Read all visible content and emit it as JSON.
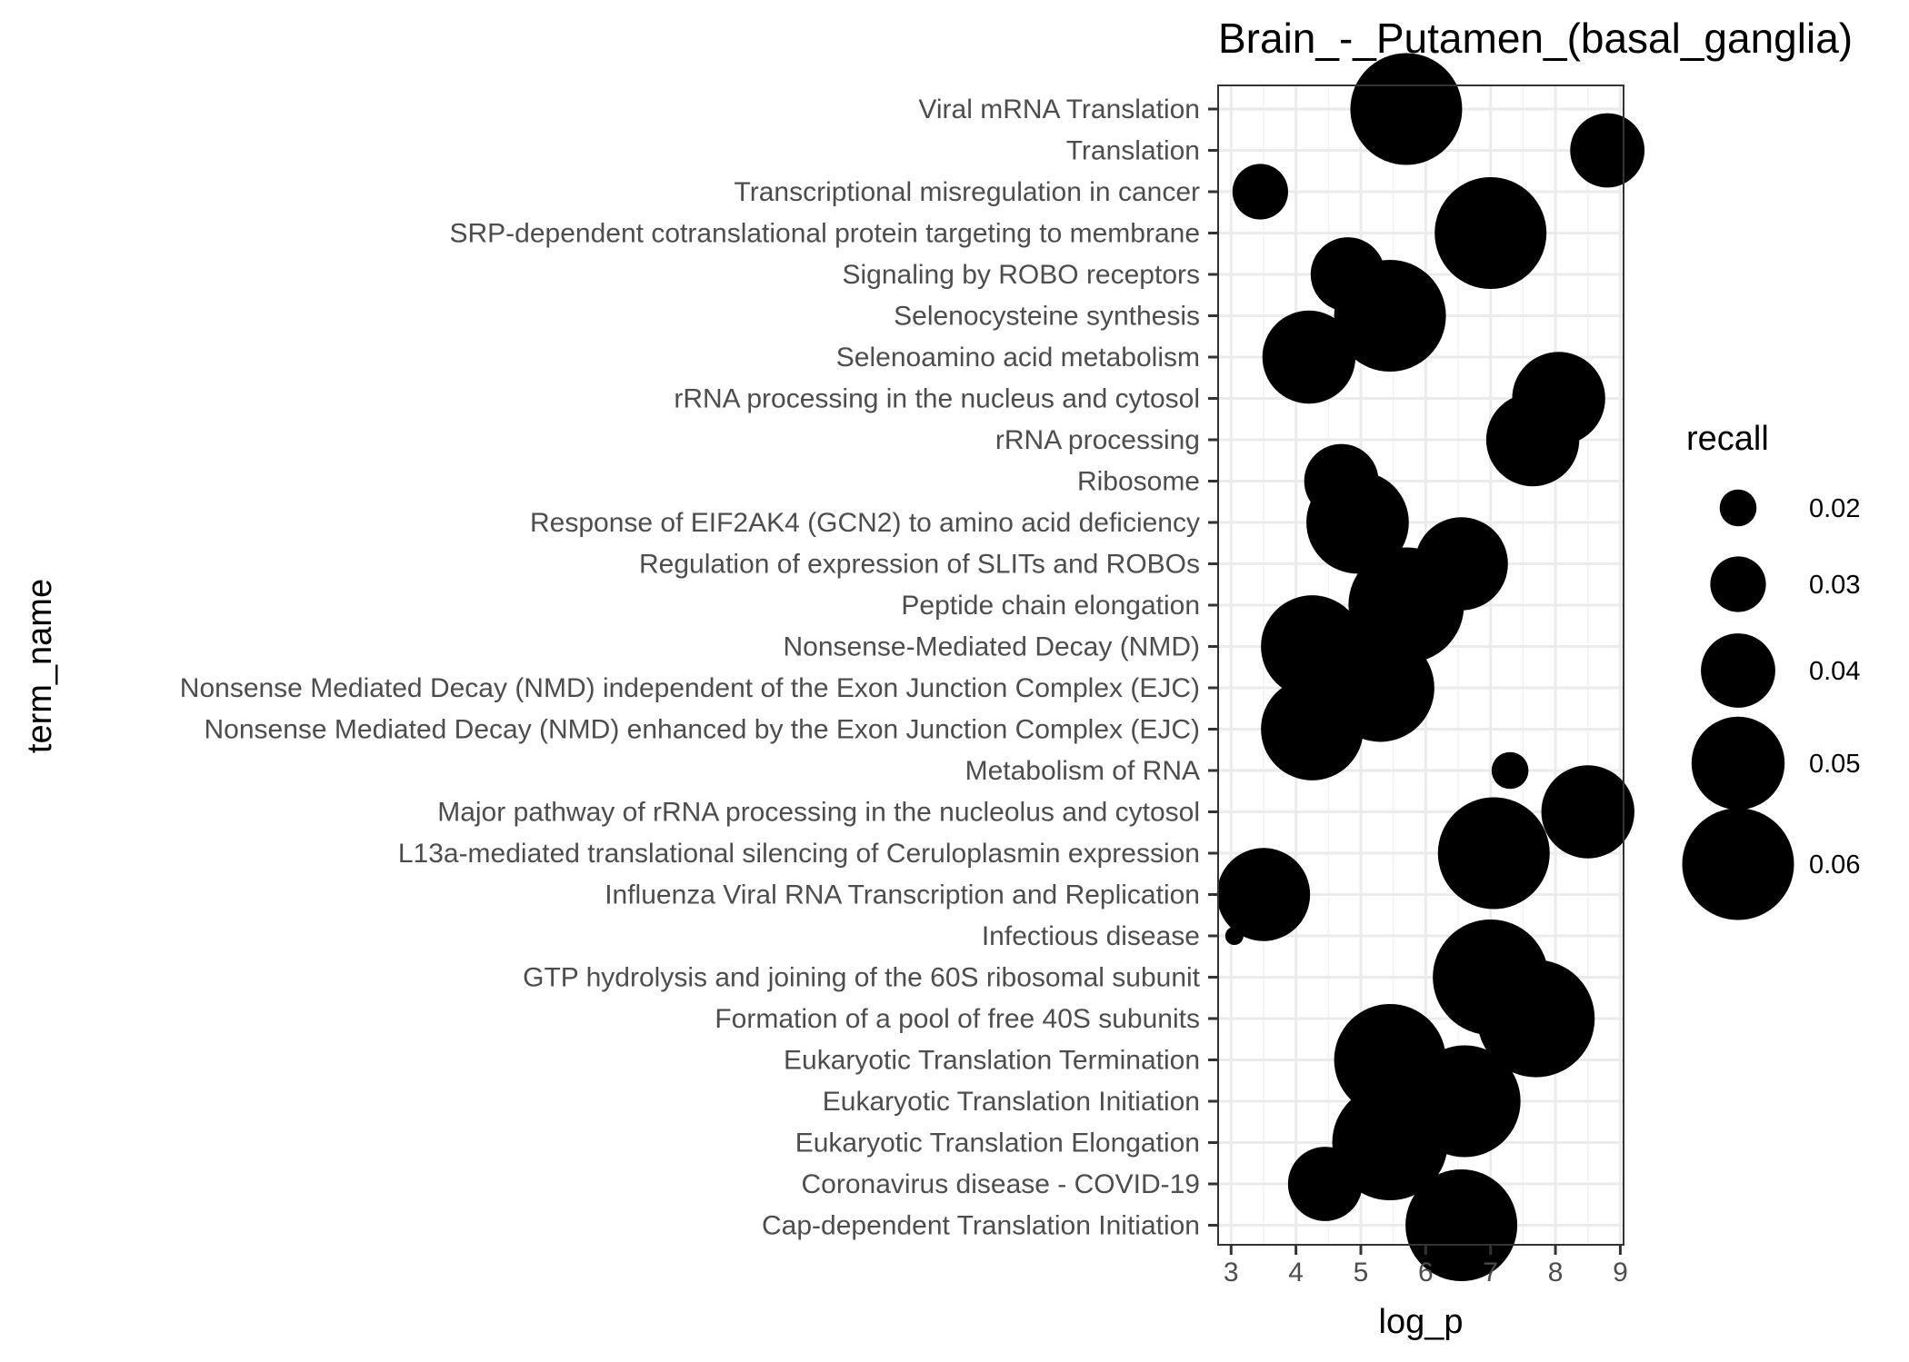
{
  "chart_data": {
    "type": "scatter",
    "title": "Brain_-_Putamen_(basal_ganglia)",
    "xlabel": "log_p",
    "ylabel": "term_name",
    "xlim": [
      2.8,
      9.05
    ],
    "x_ticks": [
      3,
      4,
      5,
      6,
      7,
      8,
      9
    ],
    "grid": true,
    "legend": {
      "title": "recall",
      "position": "right",
      "entries": [
        {
          "label": "0.02",
          "value": 0.02
        },
        {
          "label": "0.03",
          "value": 0.03
        },
        {
          "label": "0.04",
          "value": 0.04
        },
        {
          "label": "0.05",
          "value": 0.05
        },
        {
          "label": "0.06",
          "value": 0.06
        }
      ]
    },
    "points": [
      {
        "term": "Viral mRNA Translation",
        "log_p": 5.7,
        "recall": 0.06
      },
      {
        "term": "Translation",
        "log_p": 8.8,
        "recall": 0.04
      },
      {
        "term": "Transcriptional misregulation in cancer",
        "log_p": 3.45,
        "recall": 0.03
      },
      {
        "term": "SRP-dependent cotranslational protein targeting to membrane",
        "log_p": 7.0,
        "recall": 0.06
      },
      {
        "term": "Signaling by ROBO receptors",
        "log_p": 4.8,
        "recall": 0.04
      },
      {
        "term": "Selenocysteine synthesis",
        "log_p": 5.45,
        "recall": 0.06
      },
      {
        "term": "Selenoamino acid metabolism",
        "log_p": 4.2,
        "recall": 0.05
      },
      {
        "term": "rRNA processing in the nucleus and cytosol",
        "log_p": 8.05,
        "recall": 0.05
      },
      {
        "term": "rRNA processing",
        "log_p": 7.65,
        "recall": 0.05
      },
      {
        "term": "Ribosome",
        "log_p": 4.7,
        "recall": 0.04
      },
      {
        "term": "Response of EIF2AK4 (GCN2) to amino acid deficiency",
        "log_p": 4.95,
        "recall": 0.055
      },
      {
        "term": "Regulation of expression of SLITs and ROBOs",
        "log_p": 6.55,
        "recall": 0.05
      },
      {
        "term": "Peptide chain elongation",
        "log_p": 5.7,
        "recall": 0.062
      },
      {
        "term": "Nonsense-Mediated Decay (NMD)",
        "log_p": 4.25,
        "recall": 0.055
      },
      {
        "term": "Nonsense Mediated Decay (NMD) independent of the Exon Junction Complex (EJC)",
        "log_p": 5.3,
        "recall": 0.058
      },
      {
        "term": "Nonsense Mediated Decay (NMD) enhanced by the Exon Junction Complex (EJC)",
        "log_p": 4.25,
        "recall": 0.055
      },
      {
        "term": "Metabolism of RNA",
        "log_p": 7.3,
        "recall": 0.02
      },
      {
        "term": "Major pathway of rRNA processing in the nucleolus and cytosol",
        "log_p": 8.5,
        "recall": 0.05
      },
      {
        "term": "L13a-mediated translational silencing of Ceruloplasmin expression",
        "log_p": 7.05,
        "recall": 0.06
      },
      {
        "term": "Influenza Viral RNA Transcription and Replication",
        "log_p": 3.5,
        "recall": 0.05
      },
      {
        "term": "Infectious disease",
        "log_p": 3.05,
        "recall": 0.01
      },
      {
        "term": "GTP hydrolysis and joining of the 60S ribosomal subunit",
        "log_p": 7.0,
        "recall": 0.062
      },
      {
        "term": "Formation of a pool of free 40S subunits",
        "log_p": 7.7,
        "recall": 0.063
      },
      {
        "term": "Eukaryotic Translation Termination",
        "log_p": 5.45,
        "recall": 0.06
      },
      {
        "term": "Eukaryotic Translation Initiation",
        "log_p": 6.6,
        "recall": 0.06
      },
      {
        "term": "Eukaryotic Translation Elongation",
        "log_p": 5.45,
        "recall": 0.062
      },
      {
        "term": "Coronavirus disease - COVID-19",
        "log_p": 4.45,
        "recall": 0.04
      },
      {
        "term": "Cap-dependent Translation Initiation",
        "log_p": 6.55,
        "recall": 0.06
      }
    ]
  }
}
